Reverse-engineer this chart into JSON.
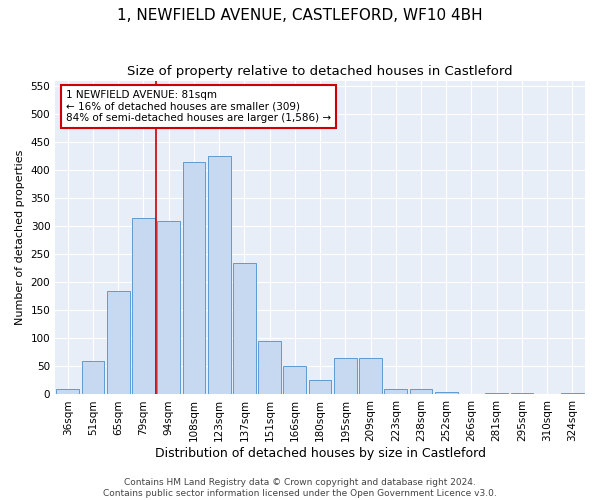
{
  "title": "1, NEWFIELD AVENUE, CASTLEFORD, WF10 4BH",
  "subtitle": "Size of property relative to detached houses in Castleford",
  "xlabel": "Distribution of detached houses by size in Castleford",
  "ylabel": "Number of detached properties",
  "categories": [
    "36sqm",
    "51sqm",
    "65sqm",
    "79sqm",
    "94sqm",
    "108sqm",
    "123sqm",
    "137sqm",
    "151sqm",
    "166sqm",
    "180sqm",
    "195sqm",
    "209sqm",
    "223sqm",
    "238sqm",
    "252sqm",
    "266sqm",
    "281sqm",
    "295sqm",
    "310sqm",
    "324sqm"
  ],
  "values": [
    10,
    60,
    185,
    315,
    310,
    415,
    425,
    235,
    95,
    50,
    25,
    65,
    65,
    10,
    10,
    5,
    0,
    3,
    2,
    0,
    2
  ],
  "bar_color": "#c6d9f0",
  "bar_edge_color": "#5b9bd5",
  "property_line_x": 3.5,
  "annotation_text": "1 NEWFIELD AVENUE: 81sqm\n← 16% of detached houses are smaller (309)\n84% of semi-detached houses are larger (1,586) →",
  "annotation_box_color": "#ffffff",
  "annotation_box_edge_color": "#cc0000",
  "vline_color": "#cc0000",
  "ylim": [
    0,
    560
  ],
  "yticks": [
    0,
    50,
    100,
    150,
    200,
    250,
    300,
    350,
    400,
    450,
    500,
    550
  ],
  "background_color": "#e8eef8",
  "grid_color": "#ffffff",
  "footer": "Contains HM Land Registry data © Crown copyright and database right 2024.\nContains public sector information licensed under the Open Government Licence v3.0.",
  "title_fontsize": 11,
  "subtitle_fontsize": 9.5,
  "xlabel_fontsize": 9,
  "ylabel_fontsize": 8,
  "tick_fontsize": 7.5,
  "footer_fontsize": 6.5,
  "annot_fontsize": 7.5
}
